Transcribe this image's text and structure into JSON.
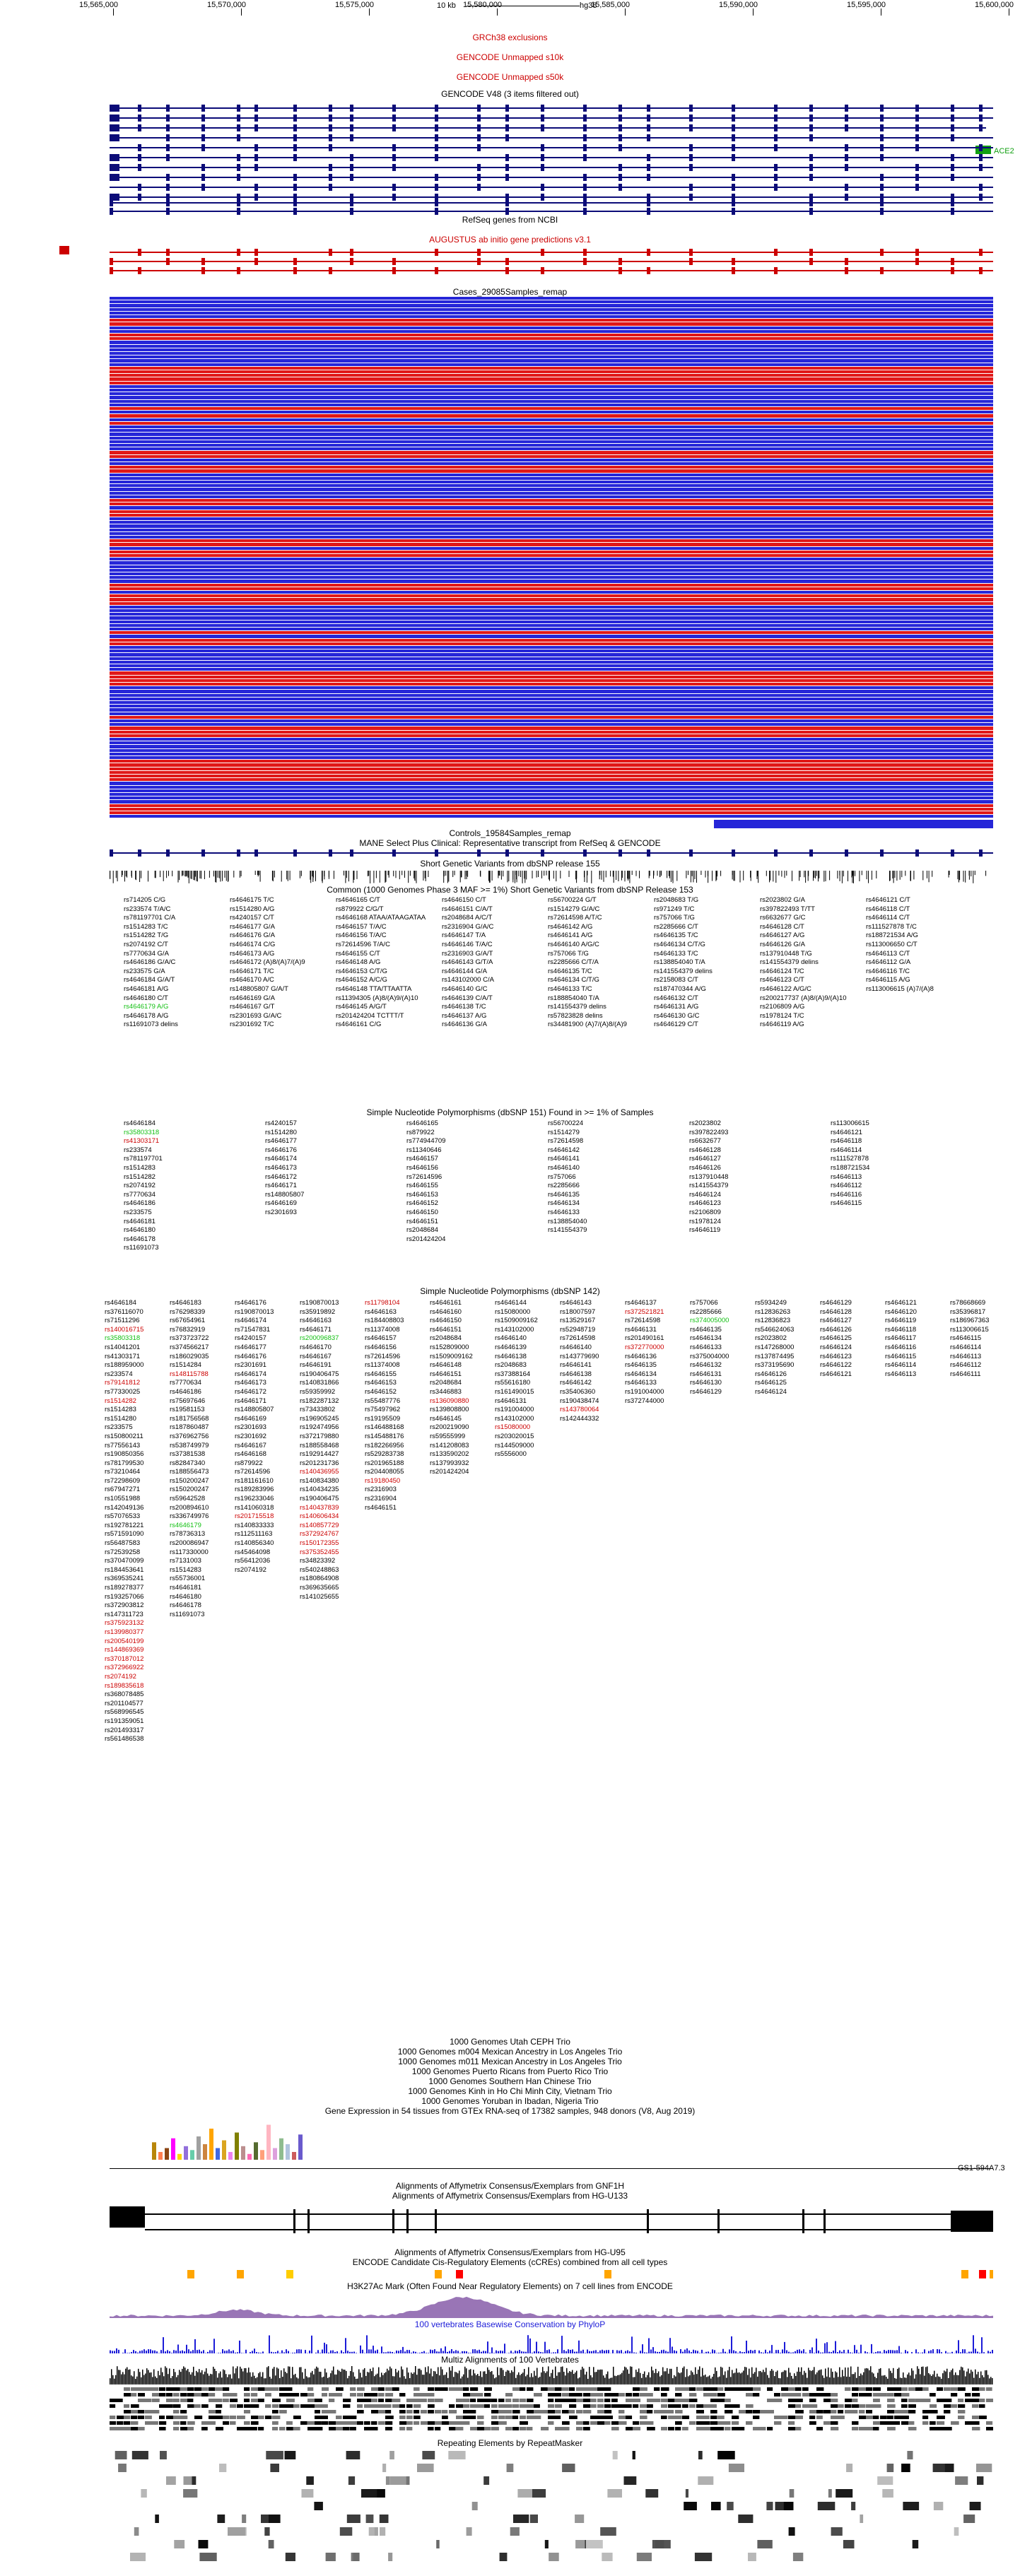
{
  "ruler": {
    "scale_label": "10 kb",
    "assembly": "hg38",
    "positions": [
      "15,565,000",
      "15,570,000",
      "15,575,000",
      "15,580,000",
      "15,585,000",
      "15,590,000",
      "15,595,000",
      "15,600,000"
    ]
  },
  "tracks": {
    "grc_exclusions": "GRCh38 exclusions",
    "unmapped_s10k": "GENCODE Unmapped s10k",
    "unmapped_s50k": "GENCODE Unmapped s50k",
    "gencode": "GENCODE V48 (3 items filtered out)",
    "ace2_label": "ACE2",
    "refseq": "RefSeq genes from NCBI",
    "augustus": "AUGUSTUS ab initio gene predictions v3.1",
    "cases": "Cases_29085Samples_remap",
    "controls": "Controls_19584Samples_remap",
    "mane": "MANE Select Plus Clinical: Representative transcript from RefSeq & GENCODE",
    "short_genetic_155": "Short Genetic Variants from dbSNP release 155",
    "common_1000g": "Common (1000 Genomes Phase 3 MAF >= 1%) Short Genetic Variants from dbSNP Release 153",
    "snp151_common": "Simple Nucleotide Polymorphisms (dbSNP 151) Found in >= 1% of Samples",
    "snp142": "Simple Nucleotide Polymorphisms (dbSNP 142)",
    "g1k_utah": "1000 Genomes Utah CEPH Trio",
    "g1k_m004": "1000 Genomes m004 Mexican Ancestry in Los Angeles Trio",
    "g1k_m011": "1000 Genomes m011 Mexican Ancestry in Los Angeles Trio",
    "g1k_pr": "1000 Genomes Puerto Ricans from Puerto Rico Trio",
    "g1k_han": "1000 Genomes Southern Han Chinese Trio",
    "g1k_kinh": "1000 Genomes Kinh in Ho Chi Minh City, Vietnam Trio",
    "g1k_yoruba": "1000 Genomes Yoruban in Ibadan, Nigeria Trio",
    "gtex": "Gene Expression in 54 tissues from GTEx RNA-seq of 17382 samples, 948 donors (V8, Aug 2019)",
    "gtex_gene": "GS1-594A7.3",
    "affy_gnf1h": "Alignments of Affymetrix Consensus/Exemplars from GNF1H",
    "affy_u133": "Alignments of Affymetrix Consensus/Exemplars from HG-U133",
    "affy_u95": "Alignments of Affymetrix Consensus/Exemplars from HG-U95",
    "encode_ccre": "ENCODE Candidate Cis-Regulatory Elements (cCREs) combined from all cell types",
    "h3k27ac": "H3K27Ac Mark (Often Found Near Regulatory Elements) on 7 cell lines from ENCODE",
    "phylop": "100 vertebrates Basewise Conservation by PhyloP",
    "multiz": "Multiz Alignments of 100 Vertebrates",
    "repeatmasker": "Repeating Elements by RepeatMasker"
  },
  "common_variants": [
    [
      "rs714205 C/G",
      "rs233574 T/A/C",
      "rs781197701 C/A",
      "rs1514283 T/C",
      "rs1514282 T/G",
      "rs2074192 C/T",
      "rs7770634 G/A",
      "rs4646186 G/A/C",
      "rs233575 G/A",
      "rs4646184 G/A/T",
      "rs4646181 A/G",
      "rs4646180 C/T",
      "rs4646179 A/G",
      "rs4646178 A/G",
      "rs11691073 delins"
    ],
    [
      "rs4646175 T/C",
      "rs1514280 A/G",
      "rs4240157 C/T",
      "rs4646177 G/A",
      "rs4646176 G/A",
      "rs4646174 C/G",
      "rs4646173 A/G",
      "rs4646172 (A)8/(A)7/(A)9",
      "rs4646171 T/C",
      "rs4646170 A/C",
      "rs148805807 G/A/T",
      "rs4646169 G/A",
      "rs4646167 G/T",
      "rs2301693 G/A/C",
      "rs2301692 T/C"
    ],
    [
      "rs4646165 C/T",
      "rs879922 C/G/T",
      "rs4646168 ATAA/ATAAGATAA",
      "rs4646157 T/A/C",
      "rs4646156 T/A/C",
      "rs72614596 T/A/C",
      "rs4646155 C/T",
      "rs4646148 A/G",
      "rs4646153 C/T/G",
      "rs4646152 A/C/G",
      "rs4646148 TTA/TTAATTA",
      "rs11394305 (A)8/(A)9/(A)10",
      "rs4646145 A/G/T",
      "rs201424204 TCTTT/T",
      "rs4646161 C/G"
    ],
    [
      "rs4646150 C/T",
      "rs4646151 C/A/T",
      "rs2048684 A/C/T",
      "rs2316904 G/A/C",
      "rs4646147 T/A",
      "rs4646146 T/A/C",
      "rs2316903 G/A/T",
      "rs4646143 G/T/A",
      "rs4646144 G/A",
      "rs143102000 C/A",
      "rs4646140 G/C",
      "rs4646139 C/A/T",
      "rs4646138 T/C",
      "rs4646137 A/G",
      "rs4646136 G/A"
    ],
    [
      "rs56700224 G/T",
      "rs1514279 G/A/C",
      "rs72614598 A/T/C",
      "rs4646142 A/G",
      "rs4646141 A/G",
      "rs4646140 A/G/C",
      "rs757066 T/G",
      "rs2285666 C/T/A",
      "rs4646135 T/C",
      "rs4646134 C/T/G",
      "rs4646133 T/C",
      "rs188854040 T/A",
      "rs141554379 delins",
      "rs57823828 delins",
      "rs34481900 (A)7/(A)8/(A)9"
    ],
    [
      "rs2048683 T/G",
      "rs971249 T/C",
      "rs757066 T/G",
      "rs2285666 C/T",
      "rs4646135 T/C",
      "rs4646134 C/T/G",
      "rs4646133 T/C",
      "rs138854040 T/A",
      "rs141554379 delins",
      "rs2158083 C/T",
      "rs187470344 A/G",
      "rs4646132 C/T",
      "rs4646131 A/G",
      "rs4646130 G/C",
      "rs4646129 C/T"
    ],
    [
      "rs2023802 G/A",
      "rs397822493 T/TT",
      "rs6632677 G/C",
      "rs4646128 C/T",
      "rs4646127 A/G",
      "rs4646126 G/A",
      "rs137910448 T/G",
      "rs141554379 delins",
      "rs4646124 T/C",
      "rs4646123 C/T",
      "rs4646122 A/G/C",
      "rs200217737 (A)8/(A)9/(A)10",
      "rs2106809 A/G",
      "rs1978124 T/C",
      "rs4646119 A/G"
    ],
    [
      "rs4646121 C/T",
      "rs4646118 C/T",
      "rs4646114 C/T",
      "rs111527878 T/C",
      "rs188721534 A/G",
      "rs113006650 C/T",
      "rs4646113 C/T",
      "rs4646112 G/A",
      "rs4646116 T/C",
      "rs4646115 A/G",
      "rs113006615 (A)7/(A)8"
    ]
  ],
  "snp151_rows": [
    [
      "rs4646184",
      "rs35803318",
      "rs41303171",
      "rs233574",
      "rs781197701",
      "rs1514283",
      "rs1514282",
      "rs2074192",
      "rs7770634",
      "rs4646186",
      "rs233575",
      "rs4646181",
      "rs4646180",
      "rs4646178",
      "rs11691073"
    ],
    [
      "rs4240157",
      "rs1514280",
      "rs4646177",
      "rs4646176",
      "rs4646174",
      "rs4646173",
      "rs4646172",
      "rs4646171",
      "rs148805807",
      "rs4646169",
      "rs2301693"
    ],
    [
      "rs4646165",
      "rs879922",
      "rs774944709",
      "rs11340646",
      "rs4646157",
      "rs4646156",
      "rs72614596",
      "rs4646155",
      "rs4646153",
      "rs4646152",
      "rs4646150",
      "rs4646151",
      "rs2048684",
      "rs201424204"
    ],
    [
      "rs56700224",
      "rs1514279",
      "rs72614598",
      "rs4646142",
      "rs4646141",
      "rs4646140",
      "rs757066",
      "rs2285666",
      "rs4646135",
      "rs4646134",
      "rs4646133",
      "rs138854040",
      "rs141554379"
    ],
    [
      "rs2023802",
      "rs397822493",
      "rs6632677",
      "rs4646128",
      "rs4646127",
      "rs4646126",
      "rs137910448",
      "rs141554379",
      "rs4646124",
      "rs4646123",
      "rs2106809",
      "rs1978124",
      "rs4646119"
    ],
    [
      "rs113006615",
      "rs4646121",
      "rs4646118",
      "rs4646114",
      "rs111527878",
      "rs188721534",
      "rs4646113",
      "rs4646112",
      "rs4646116",
      "rs4646115"
    ]
  ],
  "snp142_cols": [
    {
      "items": [
        "rs4646184",
        "rs376116070",
        "rs71511296",
        "rs140016715",
        "rs35803318",
        "rs14041201",
        "rs41303171",
        "rs188959000",
        "rs233574",
        "rs79141812",
        "rs77330025",
        "rs1514282",
        "rs1514283",
        "rs1514280",
        "rs233575",
        "rs150800211",
        "rs77556143",
        "rs190850356",
        "rs781799530",
        "rs73210464",
        "rs72298609",
        "rs67947271",
        "rs10551988",
        "rs142049136",
        "rs57076533",
        "rs192781221",
        "rs571591090",
        "rs56487583",
        "rs72539258",
        "rs370470099",
        "rs184453641",
        "rs369535241",
        "rs189278377",
        "rs193257066",
        "rs372903812",
        "rs147311723",
        "rs375923132",
        "rs139980377",
        "rs200540199",
        "rs144869369",
        "rs370187012",
        "rs372966922",
        "rs2074192",
        "rs189835618",
        "rs368078485",
        "rs201104577",
        "rs568996545",
        "rs191359051",
        "rs201493317",
        "rs561486538"
      ],
      "red": [
        3,
        9,
        11,
        36,
        37,
        38,
        39,
        40,
        41,
        42,
        43
      ],
      "green": [
        4
      ]
    },
    {
      "items": [
        "rs4646183",
        "rs76298339",
        "rs67654961",
        "rs76832919",
        "rs373723722",
        "rs374566217",
        "rs186029035",
        "rs1514284",
        "rs148115788",
        "rs7770634",
        "rs4646186",
        "rs75697646",
        "rs19581153",
        "rs181756568",
        "rs187860487",
        "rs376962756",
        "rs538749979",
        "rs37381538",
        "rs82847340",
        "rs188556473",
        "rs150200247",
        "rs150200247",
        "rs59642528",
        "rs200894610",
        "rs336749976",
        "rs4646179",
        "rs78736313",
        "rs200086947",
        "rs117330000",
        "rs7131003",
        "rs1514283",
        "rs55736001",
        "rs4646181",
        "rs4646180",
        "rs4646178",
        "rs11691073"
      ],
      "red": [
        8
      ],
      "green": [
        25
      ]
    },
    {
      "items": [
        "rs4646176",
        "rs190870013",
        "rs4646174",
        "rs71547831",
        "rs4240157",
        "rs4646177",
        "rs4646176",
        "rs2301691",
        "rs4646174",
        "rs4646173",
        "rs4646172",
        "rs4646171",
        "rs148805807",
        "rs4646169",
        "rs2301693",
        "rs2301692",
        "rs4646167",
        "rs4646168",
        "rs879922",
        "rs72614596",
        "rs181161610",
        "rs189283996",
        "rs196233046",
        "rs141060318",
        "rs201715518",
        "rs140833333",
        "rs112511163",
        "rs140856340",
        "rs45464098",
        "rs56412036",
        "rs2074192"
      ],
      "red": [
        24
      ],
      "green": []
    },
    {
      "items": [
        "rs190870013",
        "rs35919892",
        "rs4646163",
        "rs4646171",
        "rs200096837",
        "rs4646170",
        "rs4646167",
        "rs4646191",
        "rs190406475",
        "rs140831866",
        "rs59359992",
        "rs182287132",
        "rs73433802",
        "rs196905245",
        "rs192474956",
        "rs372179880",
        "rs188558468",
        "rs192914427",
        "rs201231736",
        "rs140436955",
        "rs140834380",
        "rs140434235",
        "rs190406475",
        "rs140437839",
        "rs140606434",
        "rs140857729",
        "rs372924767",
        "rs150172355",
        "rs375352455",
        "rs34823392",
        "rs540248863",
        "rs180864908",
        "rs369635665",
        "rs141025655"
      ],
      "red": [
        19,
        23,
        24,
        25,
        26,
        27,
        28
      ],
      "green": [
        4
      ]
    },
    {
      "items": [
        "rs11798104",
        "rs4646163",
        "rs184408803",
        "rs11374008",
        "rs4646157",
        "rs4646156",
        "rs72614596",
        "rs11374008",
        "rs4646155",
        "rs4646153",
        "rs4646152",
        "rs55487776",
        "rs75497962",
        "rs19195509",
        "rs146488168",
        "rs145488176",
        "rs182266956",
        "rs529283738",
        "rs201965188",
        "rs204408055",
        "rs19180450",
        "rs2316903",
        "rs2316904",
        "rs4646151"
      ],
      "red": [
        0,
        20
      ],
      "green": []
    },
    {
      "items": [
        "rs4646161",
        "rs4646160",
        "rs4646150",
        "rs4646151",
        "rs2048684",
        "rs152809000",
        "rs1509009162",
        "rs4646148",
        "rs4646151",
        "rs2048684",
        "rs3446883",
        "rs136090880",
        "rs139808800",
        "rs4646145",
        "rs200219090",
        "rs59555999",
        "rs141208083",
        "rs133590202",
        "rs137993932",
        "rs201424204"
      ],
      "red": [
        11
      ],
      "green": []
    },
    {
      "items": [
        "rs4646144",
        "rs15080000",
        "rs1509009162",
        "rs143102000",
        "rs4646140",
        "rs4646139",
        "rs4646138",
        "rs2048683",
        "rs37388164",
        "rs55616180",
        "rs161490015",
        "rs4646131",
        "rs191004000",
        "rs143102000",
        "rs15080000",
        "rs203020015",
        "rs144509000",
        "rs5556000"
      ],
      "red": [
        14
      ],
      "green": []
    },
    {
      "items": [
        "rs4646143",
        "rs18007597",
        "rs13529167",
        "rs52948719",
        "rs72614598",
        "rs4646140",
        "rs143779690",
        "rs4646141",
        "rs4646138",
        "rs4646142",
        "rs35406360",
        "rs190438474",
        "rs143780064",
        "rs142444332"
      ],
      "red": [
        12
      ],
      "green": []
    },
    {
      "items": [
        "rs4646137",
        "rs372521821",
        "rs72614598",
        "rs4646131",
        "rs201490161",
        "rs372770000",
        "rs4646136",
        "rs4646135",
        "rs4646134",
        "rs4646133",
        "rs191004000",
        "rs372744000"
      ],
      "red": [
        1,
        5
      ],
      "green": []
    },
    {
      "items": [
        "rs757066",
        "rs2285666",
        "rs374005000",
        "rs4646135",
        "rs4646134",
        "rs4646133",
        "rs375004000",
        "rs4646132",
        "rs4646131",
        "rs4646130",
        "rs4646129"
      ],
      "red": [],
      "green": [
        2
      ]
    },
    {
      "items": [
        "rs5934249",
        "rs12836263",
        "rs12836823",
        "rs546624063",
        "rs2023802",
        "rs147268000",
        "rs137874495",
        "rs373195690",
        "rs4646126",
        "rs4646125",
        "rs4646124"
      ],
      "red": [],
      "green": []
    },
    {
      "items": [
        "rs4646129",
        "rs4646128",
        "rs4646127",
        "rs4646126",
        "rs4646125",
        "rs4646124",
        "rs4646123",
        "rs4646122",
        "rs4646121"
      ],
      "red": [],
      "green": []
    },
    {
      "items": [
        "rs4646121",
        "rs4646120",
        "rs4646119",
        "rs4646118",
        "rs4646117",
        "rs4646116",
        "rs4646115",
        "rs4646114",
        "rs4646113"
      ],
      "red": [],
      "green": []
    },
    {
      "items": [
        "rs78668669",
        "rs35396817",
        "rs186967363",
        "rs113006615",
        "rs4646115",
        "rs4646114",
        "rs4646113",
        "rs4646112",
        "rs4646111"
      ],
      "red": [],
      "green": []
    }
  ],
  "gtex_bars": [
    {
      "color": "#b8860b",
      "value": 0.45
    },
    {
      "color": "#ff7f50",
      "value": 0.2
    },
    {
      "color": "#8b4513",
      "value": 0.3
    },
    {
      "color": "#ff00ff",
      "value": 0.55
    },
    {
      "color": "#ffd700",
      "value": 0.15
    },
    {
      "color": "#9370db",
      "value": 0.35
    },
    {
      "color": "#66cdaa",
      "value": 0.25
    },
    {
      "color": "#a0a0a0",
      "value": 0.6
    },
    {
      "color": "#cd853f",
      "value": 0.4
    },
    {
      "color": "#ffa500",
      "value": 0.8
    },
    {
      "color": "#4169e1",
      "value": 0.3
    },
    {
      "color": "#daa520",
      "value": 0.5
    },
    {
      "color": "#ee82ee",
      "value": 0.2
    },
    {
      "color": "#808000",
      "value": 0.7
    },
    {
      "color": "#bc8f8f",
      "value": 0.35
    },
    {
      "color": "#ff69b4",
      "value": 0.15
    },
    {
      "color": "#556b2f",
      "value": 0.45
    },
    {
      "color": "#ffa07a",
      "value": 0.25
    },
    {
      "color": "#ffb6c1",
      "value": 0.9
    },
    {
      "color": "#dda0dd",
      "value": 0.3
    },
    {
      "color": "#8fbc8f",
      "value": 0.55
    },
    {
      "color": "#b0c4de",
      "value": 0.4
    },
    {
      "color": "#cd5c5c",
      "value": 0.2
    },
    {
      "color": "#6a5acd",
      "value": 0.65
    }
  ],
  "colors": {
    "gene_navy": "#0c0c78",
    "cases_blue": "#2626d8",
    "cases_red": "#e01818",
    "encode_orange": "#ffa500",
    "encode_red": "#ff0000",
    "encode_yellow": "#ffcd00",
    "h3k27ac_purple": "#7f52a4",
    "phylop_blue": "#1c1cd8"
  }
}
